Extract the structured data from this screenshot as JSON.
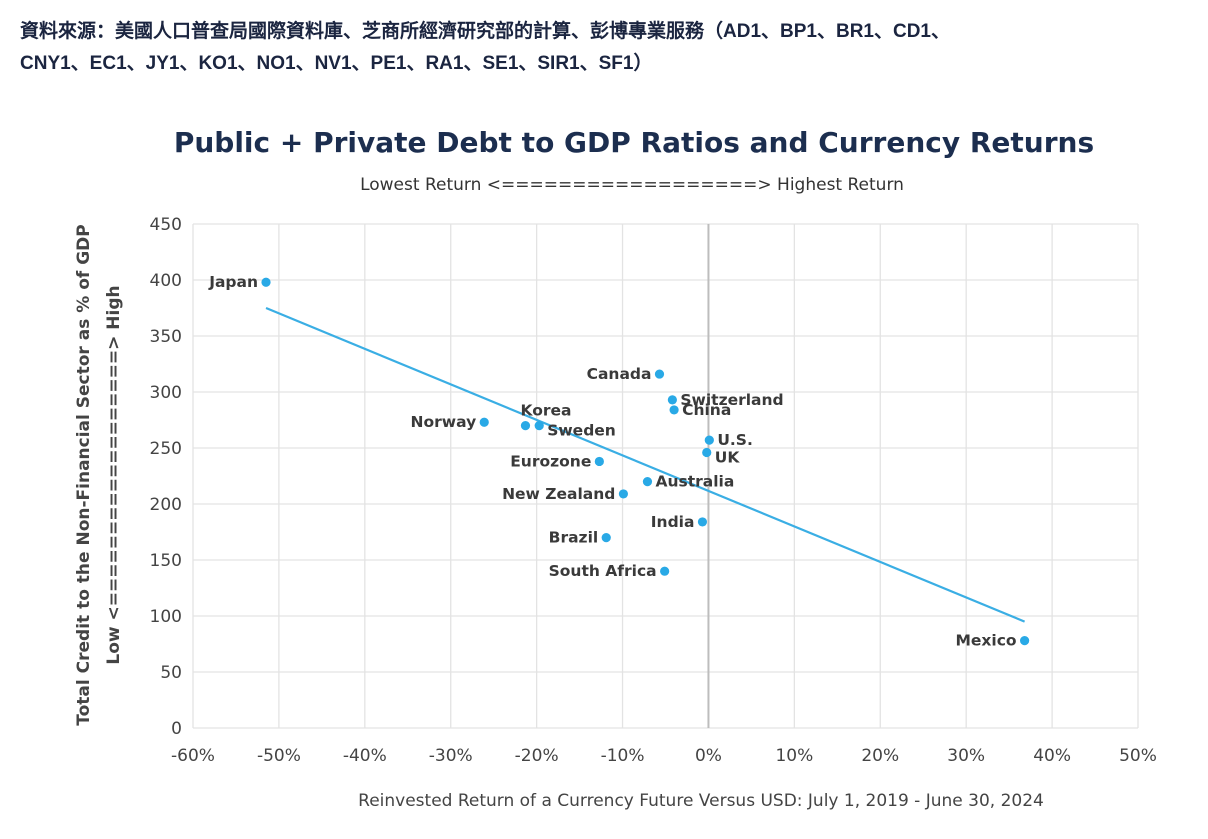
{
  "source_note": {
    "line1": "資料來源：美國人口普查局國際資料庫、芝商所經濟研究部的計算、彭博專業服務（AD1、BP1、BR1、CD1、",
    "line2": "CNY1、EC1、JY1、KO1、NO1、NV1、PE1、RA1、SE1、SIR1、SF1）"
  },
  "colors": {
    "point": "#29a9e6",
    "trendline": "#3aaee4",
    "grid": "#e3e3e3",
    "zero_line": "#bdbdbd",
    "title": "#1c2e4f"
  },
  "chart_data": {
    "type": "scatter",
    "title": "Public + Private Debt to GDP Ratios and Currency Returns",
    "subtitle": "Lowest Return <==================> Highest Return",
    "xlabel": "Reinvested Return of a Currency Future Versus USD: July 1, 2019 - June 30, 2024",
    "ylabel": "Total Credit to the Non-Financial Sector as % of GDP",
    "ylabel2": "Low <==================> High",
    "xlim": [
      -60,
      50
    ],
    "ylim": [
      0,
      450
    ],
    "x_unit": "%",
    "x_ticks": [
      -60,
      -50,
      -40,
      -30,
      -20,
      -10,
      0,
      10,
      20,
      30,
      40,
      50
    ],
    "x_tick_labels": [
      "-60%",
      "-50%",
      "-40%",
      "-30%",
      "-20%",
      "-10%",
      "0%",
      "10%",
      "20%",
      "30%",
      "40%",
      "50%"
    ],
    "y_ticks": [
      0,
      50,
      100,
      150,
      200,
      250,
      300,
      350,
      400,
      450
    ],
    "y_tick_labels": [
      "0",
      "50",
      "100",
      "150",
      "200",
      "250",
      "300",
      "350",
      "400",
      "450"
    ],
    "grid": true,
    "legend": "none",
    "points": [
      {
        "label": "Japan",
        "x": -51.5,
        "y": 398,
        "label_side": "left"
      },
      {
        "label": "Canada",
        "x": -5.7,
        "y": 316,
        "label_side": "left"
      },
      {
        "label": "Switzerland",
        "x": -4.2,
        "y": 293,
        "label_side": "right"
      },
      {
        "label": "China",
        "x": -4.0,
        "y": 284,
        "label_side": "right"
      },
      {
        "label": "Norway",
        "x": -26.1,
        "y": 273,
        "label_side": "left"
      },
      {
        "label": "Korea",
        "x": -21.3,
        "y": 270,
        "label_side": "above"
      },
      {
        "label": "Sweden",
        "x": -19.7,
        "y": 270,
        "label_side": "right-below"
      },
      {
        "label": "U.S.",
        "x": 0.1,
        "y": 257,
        "label_side": "right"
      },
      {
        "label": "UK",
        "x": -0.2,
        "y": 246,
        "label_side": "right-below"
      },
      {
        "label": "Eurozone",
        "x": -12.7,
        "y": 238,
        "label_side": "left"
      },
      {
        "label": "Australia",
        "x": -7.1,
        "y": 220,
        "label_side": "right"
      },
      {
        "label": "New Zealand",
        "x": -9.9,
        "y": 209,
        "label_side": "left"
      },
      {
        "label": "India",
        "x": -0.7,
        "y": 184,
        "label_side": "left"
      },
      {
        "label": "Brazil",
        "x": -11.9,
        "y": 170,
        "label_side": "left"
      },
      {
        "label": "South Africa",
        "x": -5.1,
        "y": 140,
        "label_side": "left"
      },
      {
        "label": "Mexico",
        "x": 36.8,
        "y": 78,
        "label_side": "left"
      }
    ],
    "trendline": {
      "x": [
        -51.5,
        36.8
      ],
      "y": [
        375,
        95
      ]
    }
  }
}
